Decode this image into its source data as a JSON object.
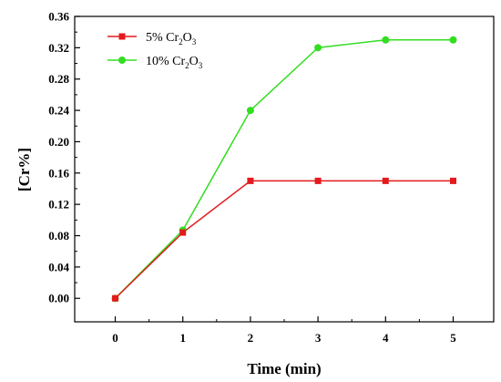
{
  "chart_data": {
    "type": "line",
    "xlabel": "Time (min)",
    "ylabel": "[Cr%]",
    "xlim": [
      -0.6,
      5.6
    ],
    "ylim": [
      -0.03,
      0.36
    ],
    "x_ticks": [
      0,
      1,
      2,
      3,
      4,
      5
    ],
    "y_ticks": [
      0.0,
      0.04,
      0.08,
      0.12,
      0.16,
      0.2,
      0.24,
      0.28,
      0.32,
      0.36
    ],
    "y_tick_labels": [
      "0.00",
      "0.04",
      "0.08",
      "0.12",
      "0.16",
      "0.20",
      "0.24",
      "0.28",
      "0.32",
      "0.36"
    ],
    "grid": false,
    "legend_position": "top-left",
    "x": [
      0,
      1,
      2,
      3,
      4,
      5
    ],
    "series": [
      {
        "name": "5% Cr2O3",
        "legend_parts": [
          "5% Cr",
          "2",
          "O",
          "3"
        ],
        "marker": "square",
        "color": "#e41a1c",
        "values": [
          0.0,
          0.084,
          0.15,
          0.15,
          0.15,
          0.15
        ]
      },
      {
        "name": "10% Cr2O3",
        "legend_parts": [
          "10% Cr",
          "2",
          "O",
          "3"
        ],
        "marker": "circle",
        "color": "#33dd22",
        "values": [
          0.0,
          0.087,
          0.24,
          0.32,
          0.33,
          0.33
        ]
      }
    ]
  }
}
